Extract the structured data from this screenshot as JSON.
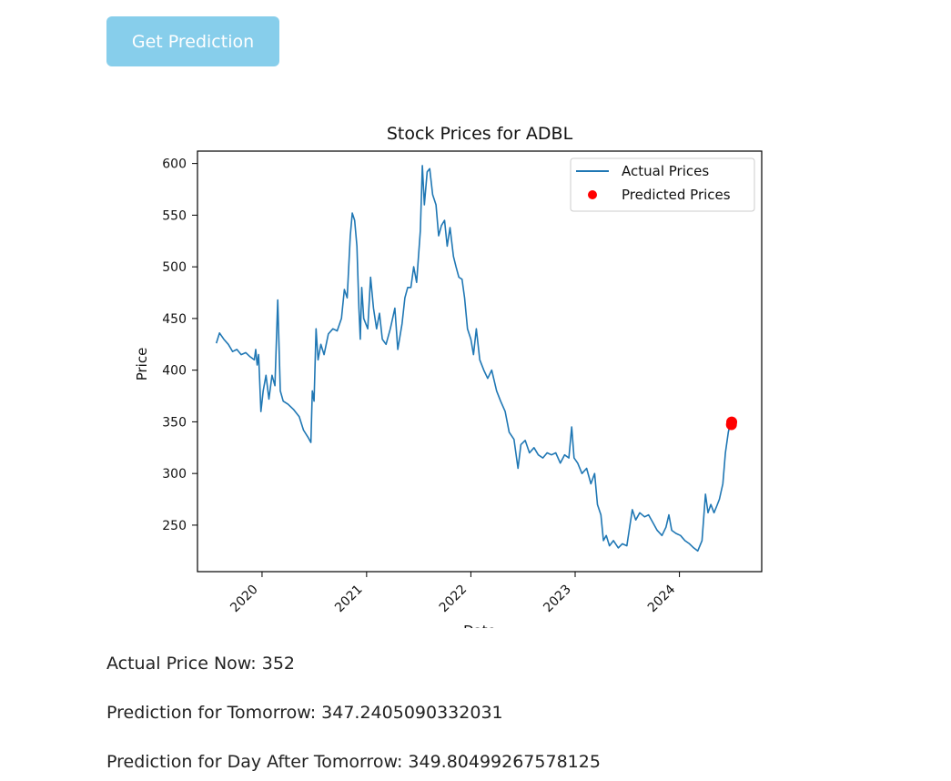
{
  "button": {
    "label": "Get Prediction"
  },
  "chart_data": {
    "type": "line",
    "title": "Stock Prices for ADBL",
    "ylabel": "Price",
    "xlabel": "Date",
    "xlim": [
      "2019-05-20",
      "2024-10-15"
    ],
    "ylim": [
      205,
      612
    ],
    "x_ticks": [
      "2020-01-01",
      "2021-01-01",
      "2022-01-01",
      "2023-01-01",
      "2024-01-01"
    ],
    "x_tick_labels": [
      "2020",
      "2021",
      "2022",
      "2023",
      "2024"
    ],
    "y_ticks": [
      250,
      300,
      350,
      400,
      450,
      500,
      550,
      600
    ],
    "legend_position": "upper-right",
    "grid": false,
    "series": [
      {
        "name": "Actual Prices",
        "color": "#1f77b4",
        "points": [
          [
            "2019-07-25",
            426
          ],
          [
            "2019-08-05",
            436
          ],
          [
            "2019-08-20",
            430
          ],
          [
            "2019-09-05",
            425
          ],
          [
            "2019-09-20",
            418
          ],
          [
            "2019-10-05",
            420
          ],
          [
            "2019-10-20",
            415
          ],
          [
            "2019-11-05",
            417
          ],
          [
            "2019-11-20",
            413
          ],
          [
            "2019-12-05",
            410
          ],
          [
            "2019-12-10",
            420
          ],
          [
            "2019-12-15",
            405
          ],
          [
            "2019-12-20",
            415
          ],
          [
            "2019-12-28",
            360
          ],
          [
            "2020-01-05",
            380
          ],
          [
            "2020-01-15",
            395
          ],
          [
            "2020-01-25",
            372
          ],
          [
            "2020-02-05",
            395
          ],
          [
            "2020-02-15",
            385
          ],
          [
            "2020-02-25",
            468
          ],
          [
            "2020-03-05",
            380
          ],
          [
            "2020-03-15",
            370
          ],
          [
            "2020-04-01",
            367
          ],
          [
            "2020-04-20",
            362
          ],
          [
            "2020-05-10",
            355
          ],
          [
            "2020-05-25",
            342
          ],
          [
            "2020-06-10",
            335
          ],
          [
            "2020-06-20",
            330
          ],
          [
            "2020-06-25",
            380
          ],
          [
            "2020-07-01",
            370
          ],
          [
            "2020-07-08",
            440
          ],
          [
            "2020-07-15",
            410
          ],
          [
            "2020-07-25",
            425
          ],
          [
            "2020-08-05",
            415
          ],
          [
            "2020-08-20",
            435
          ],
          [
            "2020-09-05",
            440
          ],
          [
            "2020-09-20",
            438
          ],
          [
            "2020-10-05",
            450
          ],
          [
            "2020-10-15",
            478
          ],
          [
            "2020-10-25",
            470
          ],
          [
            "2020-11-05",
            530
          ],
          [
            "2020-11-12",
            552
          ],
          [
            "2020-11-20",
            545
          ],
          [
            "2020-11-28",
            520
          ],
          [
            "2020-12-05",
            460
          ],
          [
            "2020-12-10",
            430
          ],
          [
            "2020-12-15",
            480
          ],
          [
            "2020-12-22",
            450
          ],
          [
            "2021-01-05",
            440
          ],
          [
            "2021-01-15",
            490
          ],
          [
            "2021-01-25",
            460
          ],
          [
            "2021-02-05",
            440
          ],
          [
            "2021-02-15",
            455
          ],
          [
            "2021-02-25",
            430
          ],
          [
            "2021-03-10",
            425
          ],
          [
            "2021-03-25",
            440
          ],
          [
            "2021-04-10",
            460
          ],
          [
            "2021-04-20",
            420
          ],
          [
            "2021-05-05",
            445
          ],
          [
            "2021-05-15",
            470
          ],
          [
            "2021-05-25",
            480
          ],
          [
            "2021-06-05",
            480
          ],
          [
            "2021-06-15",
            500
          ],
          [
            "2021-06-25",
            485
          ],
          [
            "2021-07-08",
            535
          ],
          [
            "2021-07-15",
            598
          ],
          [
            "2021-07-22",
            560
          ],
          [
            "2021-08-01",
            592
          ],
          [
            "2021-08-10",
            595
          ],
          [
            "2021-08-20",
            570
          ],
          [
            "2021-09-01",
            560
          ],
          [
            "2021-09-10",
            530
          ],
          [
            "2021-09-20",
            540
          ],
          [
            "2021-10-01",
            545
          ],
          [
            "2021-10-10",
            520
          ],
          [
            "2021-10-20",
            538
          ],
          [
            "2021-11-01",
            510
          ],
          [
            "2021-11-10",
            500
          ],
          [
            "2021-11-20",
            490
          ],
          [
            "2021-12-01",
            488
          ],
          [
            "2021-12-10",
            470
          ],
          [
            "2021-12-20",
            440
          ],
          [
            "2022-01-01",
            430
          ],
          [
            "2022-01-10",
            415
          ],
          [
            "2022-01-20",
            440
          ],
          [
            "2022-02-01",
            410
          ],
          [
            "2022-02-15",
            400
          ],
          [
            "2022-03-01",
            392
          ],
          [
            "2022-03-15",
            400
          ],
          [
            "2022-04-01",
            380
          ],
          [
            "2022-04-15",
            370
          ],
          [
            "2022-05-01",
            360
          ],
          [
            "2022-05-15",
            340
          ],
          [
            "2022-06-01",
            333
          ],
          [
            "2022-06-15",
            305
          ],
          [
            "2022-06-25",
            328
          ],
          [
            "2022-07-10",
            332
          ],
          [
            "2022-07-25",
            320
          ],
          [
            "2022-08-10",
            325
          ],
          [
            "2022-08-25",
            318
          ],
          [
            "2022-09-10",
            315
          ],
          [
            "2022-09-25",
            320
          ],
          [
            "2022-10-10",
            318
          ],
          [
            "2022-10-25",
            320
          ],
          [
            "2022-11-10",
            310
          ],
          [
            "2022-11-25",
            318
          ],
          [
            "2022-12-10",
            315
          ],
          [
            "2022-12-20",
            345
          ],
          [
            "2022-12-28",
            315
          ],
          [
            "2023-01-10",
            310
          ],
          [
            "2023-01-25",
            300
          ],
          [
            "2023-02-10",
            305
          ],
          [
            "2023-02-25",
            290
          ],
          [
            "2023-03-10",
            300
          ],
          [
            "2023-03-20",
            270
          ],
          [
            "2023-04-01",
            260
          ],
          [
            "2023-04-10",
            235
          ],
          [
            "2023-04-20",
            240
          ],
          [
            "2023-05-01",
            230
          ],
          [
            "2023-05-15",
            235
          ],
          [
            "2023-06-01",
            228
          ],
          [
            "2023-06-15",
            232
          ],
          [
            "2023-07-01",
            230
          ],
          [
            "2023-07-20",
            265
          ],
          [
            "2023-08-01",
            255
          ],
          [
            "2023-08-15",
            262
          ],
          [
            "2023-09-01",
            258
          ],
          [
            "2023-09-15",
            260
          ],
          [
            "2023-10-01",
            252
          ],
          [
            "2023-10-15",
            245
          ],
          [
            "2023-11-01",
            240
          ],
          [
            "2023-11-15",
            248
          ],
          [
            "2023-11-25",
            260
          ],
          [
            "2023-12-05",
            245
          ],
          [
            "2023-12-20",
            242
          ],
          [
            "2024-01-05",
            240
          ],
          [
            "2024-01-20",
            235
          ],
          [
            "2024-02-05",
            232
          ],
          [
            "2024-02-20",
            228
          ],
          [
            "2024-03-05",
            225
          ],
          [
            "2024-03-20",
            235
          ],
          [
            "2024-04-01",
            280
          ],
          [
            "2024-04-10",
            262
          ],
          [
            "2024-04-20",
            270
          ],
          [
            "2024-05-01",
            262
          ],
          [
            "2024-05-10",
            268
          ],
          [
            "2024-05-20",
            275
          ],
          [
            "2024-06-01",
            290
          ],
          [
            "2024-06-10",
            320
          ],
          [
            "2024-06-20",
            340
          ],
          [
            "2024-06-30",
            352
          ]
        ]
      },
      {
        "name": "Predicted Prices",
        "color": "#ff0000",
        "marker": "circle",
        "points": [
          [
            "2024-07-01",
            347.2405090332031
          ],
          [
            "2024-07-02",
            349.80499267578125
          ]
        ]
      }
    ]
  },
  "results": {
    "actual_now": "Actual Price Now: 352",
    "tomorrow": "Prediction for Tomorrow: 347.2405090332031",
    "day_after": "Prediction for Day After Tomorrow: 349.80499267578125"
  }
}
